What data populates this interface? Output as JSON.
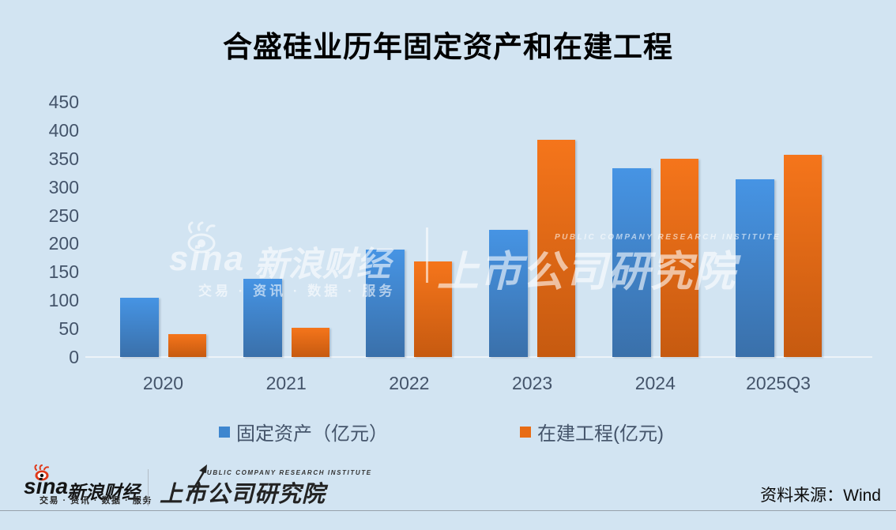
{
  "title": "合盛硅业历年固定资产和在建工程",
  "chart_data": {
    "type": "bar",
    "categories": [
      "2020",
      "2021",
      "2022",
      "2023",
      "2024",
      "2025Q3"
    ],
    "series": [
      {
        "name": "固定资产（亿元）",
        "legend_color": "#3e86cf",
        "color_top": "#4694e4",
        "color_bottom": "#3a70aa",
        "values": [
          105,
          138,
          189,
          224,
          333,
          313
        ]
      },
      {
        "name": "在建工程(亿元)",
        "legend_color": "#e86c15",
        "color_top": "#f5751b",
        "color_bottom": "#c65a10",
        "values": [
          40,
          51,
          168,
          383,
          350,
          357
        ]
      }
    ],
    "title": "合盛硅业历年固定资产和在建工程",
    "xlabel": "",
    "ylabel": "",
    "ylim": [
      0,
      450
    ],
    "yticks": [
      0,
      50,
      100,
      150,
      200,
      250,
      300,
      350,
      400,
      450
    ],
    "grid": false,
    "legend_position": "bottom"
  },
  "colors": {
    "background": "#d2e4f2",
    "tick_text": "#44546a",
    "baseline": "#edf3f8",
    "sina_red": "#e0391a"
  },
  "watermark": {
    "sina_word": "sina",
    "brand": "新浪财经",
    "tagline": "交易 · 资讯 · 数据 · 服务",
    "institute_small": "PUBLIC COMPANY RESEARCH INSTITUTE",
    "institute": "上市公司研究院"
  },
  "footer": {
    "sina_word": "sina",
    "brand": "新浪财经",
    "tagline": "交易 · 资讯 · 数据 · 服务",
    "institute_small": "PUBLIC COMPANY RESEARCH INSTITUTE",
    "institute": "上市公司研究院",
    "source": "资料来源：Wind"
  }
}
